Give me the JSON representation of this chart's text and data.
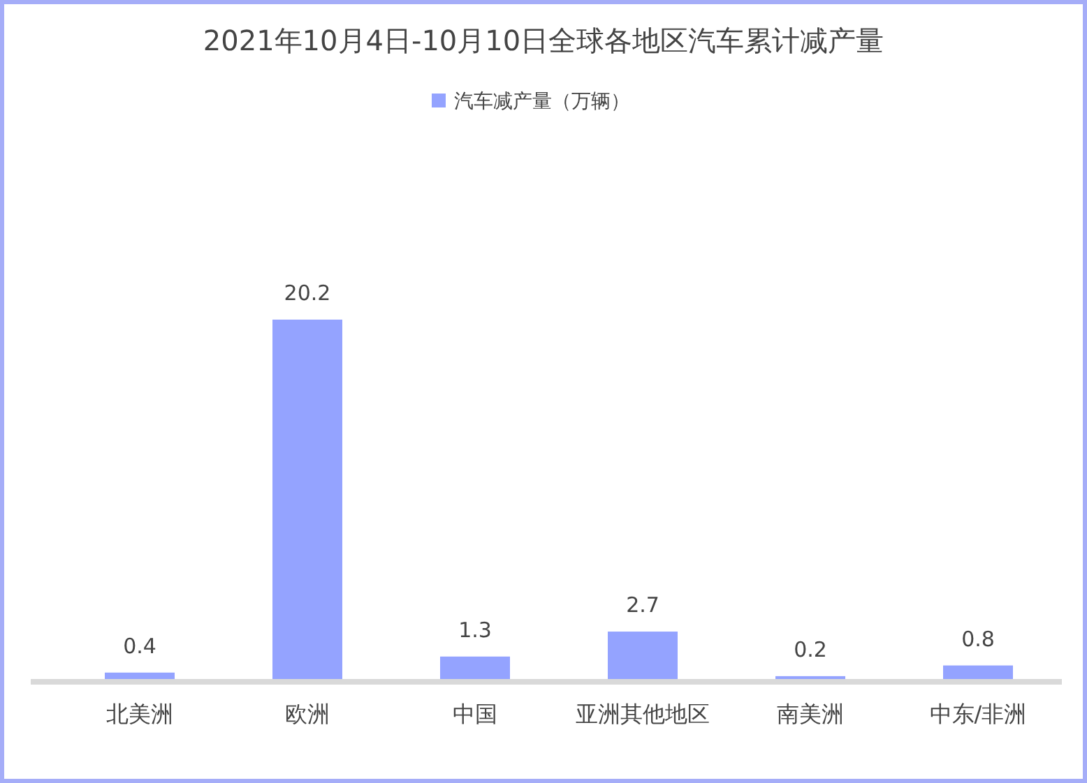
{
  "chart_data": {
    "type": "bar",
    "title": "2021年10月4日-10月10日全球各地区汽车累计减产量",
    "categories": [
      "北美洲",
      "欧洲",
      "中国",
      "亚洲其他地区",
      "南美洲",
      "中东/非洲"
    ],
    "series": [
      {
        "name": "汽车减产量（万辆）",
        "color": "#94a3ff",
        "values": [
          0.4,
          20.2,
          1.3,
          2.7,
          0.2,
          0.8
        ]
      }
    ],
    "data_labels": true,
    "legend": "top"
  }
}
